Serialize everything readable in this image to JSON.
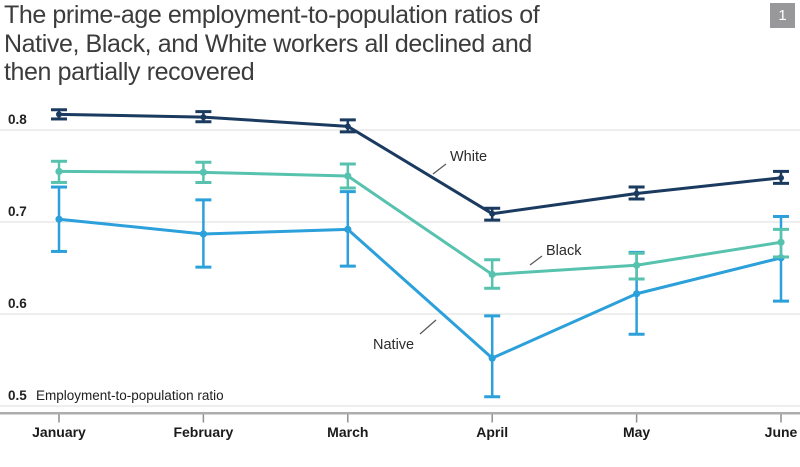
{
  "title": {
    "lines": [
      "The prime-age employment-to-population ratios of",
      "Native, Black, and White workers all declined and",
      "then partially recovered"
    ]
  },
  "badge": {
    "number": "1"
  },
  "colors": {
    "native": "#2BA0DA",
    "black": "#57C2AE",
    "white": "#1A3A5F",
    "grid": "#E4E4E4",
    "axis_line": "#ADADAD",
    "tick": "#8F8F8F",
    "leader": "#5A5A5A",
    "badge_bg": "#98989A",
    "title_text": "#3C3C3C"
  },
  "chart_data": {
    "type": "line",
    "title": "The prime-age employment-to-population ratios of Native, Black, and White workers all declined and then partially recovered",
    "categories": [
      "January",
      "February",
      "March",
      "April",
      "May",
      "June"
    ],
    "xlabel": "",
    "ylabel": "Employment-to-population ratio",
    "yticks": [
      0.5,
      0.6,
      0.7,
      0.8
    ],
    "ylim": [
      0.49,
      0.835
    ],
    "grid": true,
    "legend_position": "inline-annotations",
    "error_bars": true,
    "series": [
      {
        "name": "Native",
        "color": "#2BA0DA",
        "values": [
          0.703,
          0.687,
          0.692,
          0.552,
          0.622,
          0.661
        ],
        "err_lo": [
          0.668,
          0.651,
          0.652,
          0.51,
          0.578,
          0.614
        ],
        "err_hi": [
          0.738,
          0.724,
          0.733,
          0.598,
          0.667,
          0.706
        ]
      },
      {
        "name": "Black",
        "color": "#57C2AE",
        "values": [
          0.755,
          0.754,
          0.75,
          0.643,
          0.653,
          0.678
        ],
        "err_lo": [
          0.743,
          0.743,
          0.737,
          0.628,
          0.638,
          0.662
        ],
        "err_hi": [
          0.766,
          0.765,
          0.763,
          0.659,
          0.666,
          0.692
        ]
      },
      {
        "name": "White",
        "color": "#1A3A5F",
        "values": [
          0.817,
          0.814,
          0.804,
          0.709,
          0.731,
          0.748
        ],
        "err_lo": [
          0.812,
          0.809,
          0.798,
          0.702,
          0.725,
          0.742
        ],
        "err_hi": [
          0.822,
          0.82,
          0.811,
          0.715,
          0.738,
          0.755
        ]
      }
    ],
    "annotations": [
      {
        "label": "White",
        "text_x": 450,
        "text_y": 161,
        "leader": [
          433,
          174,
          446,
          164
        ]
      },
      {
        "label": "Black",
        "text_x": 546,
        "text_y": 255,
        "leader": [
          530,
          265,
          542,
          256
        ]
      },
      {
        "label": "Native",
        "text_x": 373,
        "text_y": 349,
        "leader": [
          420,
          334,
          436,
          320
        ]
      }
    ]
  }
}
